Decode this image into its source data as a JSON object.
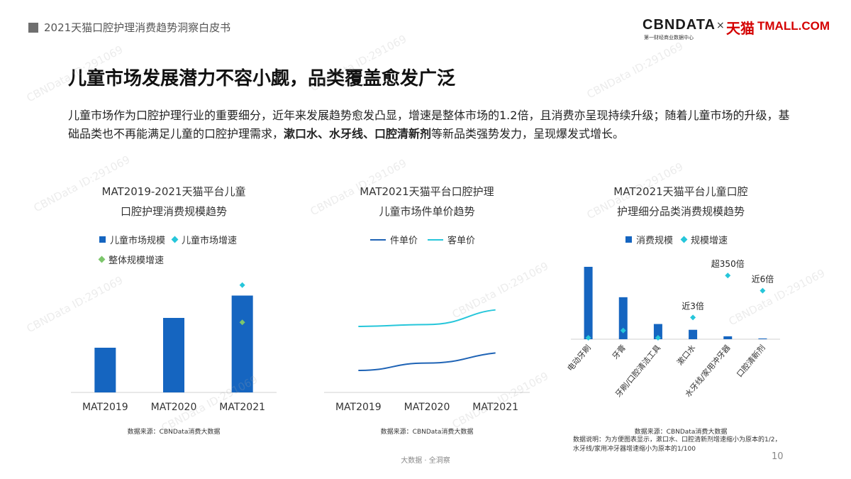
{
  "header": {
    "title": "2021天猫口腔护理消费趋势洞察白皮书"
  },
  "logo": {
    "cbn": "CBNDATA",
    "cbn_sub": "第一财经商业数据中心",
    "x": "×",
    "tmall_cn": "天猫",
    "tmall_en": "TMALL.COM"
  },
  "page_title": "儿童市场发展潜力不容小觑，品类覆盖愈发广泛",
  "intro": {
    "part1": "儿童市场作为口腔护理行业的重要细分，近年来发展趋势愈发凸显，增速是整体市场的1.2倍，且消费亦呈现持续升级；随着儿童市场的升级，基础品类也不再能满足儿童的口腔护理需求，",
    "bold": "漱口水、水牙线、口腔清新剂",
    "part2": "等新品类强势发力，呈现爆发式增长。"
  },
  "chart1": {
    "title_line1": "MAT2019-2021天猫平台儿童",
    "title_line2": "口腔护理消费规模趋势",
    "legend": [
      "儿童市场规模",
      "儿童市场增速",
      "整体规模增速"
    ],
    "source": "数据来源：CBNData消费大数据"
  },
  "chart2": {
    "title_line1": "MAT2021天猫平台口腔护理",
    "title_line2": "儿童市场件单价趋势",
    "legend": [
      "件单价",
      "客单价"
    ],
    "source": "数据来源：CBNData消费大数据"
  },
  "chart3": {
    "title_line1": "MAT2021天猫平台儿童口腔",
    "title_line2": "护理细分品类消费规模趋势",
    "legend": [
      "消费规模",
      "规模增速"
    ],
    "source": "数据来源：CBNData消费大数据",
    "note": "数据说明：为方便图表显示，漱口水、口腔清新剂增速缩小为原本的1/2，水牙线/家用冲牙器增速缩小为原本的1/100"
  },
  "chart_data": [
    {
      "type": "bar",
      "categories": [
        "MAT2019",
        "MAT2020",
        "MAT2021"
      ],
      "series": [
        {
          "name": "儿童市场规模",
          "kind": "bar",
          "color": "#1565c0",
          "values": [
            30,
            50,
            65
          ]
        },
        {
          "name": "儿童市场增速",
          "kind": "marker",
          "color": "#26c6da",
          "values": [
            null,
            null,
            72
          ]
        },
        {
          "name": "整体规模增速",
          "kind": "marker",
          "color": "#7cc66b",
          "values": [
            null,
            null,
            47
          ]
        }
      ],
      "ylim": [
        0,
        80
      ]
    },
    {
      "type": "line",
      "categories": [
        "MAT2019",
        "MAT2020",
        "MAT2021"
      ],
      "series": [
        {
          "name": "件单价",
          "color": "#1e63b5",
          "values": [
            24,
            32,
            43
          ]
        },
        {
          "name": "客单价",
          "color": "#26c6da",
          "values": [
            72,
            74,
            90
          ]
        }
      ],
      "ylim": [
        0,
        130
      ]
    },
    {
      "type": "bar",
      "categories": [
        "电动牙刷",
        "牙膏",
        "牙刷/口腔清洁工具",
        "漱口水",
        "水牙线/家用冲牙器",
        "口腔清新剂"
      ],
      "series": [
        {
          "name": "消费规模",
          "kind": "bar",
          "color": "#1565c0",
          "values": [
            100,
            58,
            21,
            13,
            4,
            1
          ]
        },
        {
          "name": "规模增速",
          "kind": "marker",
          "color": "#26c6da",
          "values": [
            0,
            12,
            0,
            30,
            88,
            67
          ]
        }
      ],
      "annotations": [
        {
          "category": "漱口水",
          "text": "近3倍"
        },
        {
          "category": "水牙线/家用冲牙器",
          "text": "超350倍"
        },
        {
          "category": "口腔清新剂",
          "text": "近6倍"
        }
      ],
      "ylim": [
        0,
        100
      ]
    }
  ],
  "footer": {
    "text": "大数据 · 全洞察",
    "page": "10"
  },
  "watermark": "CBNData ID:291069",
  "colors": {
    "bar": "#1565c0",
    "cyan": "#26c6da",
    "green": "#7cc66b",
    "line_dark": "#1e63b5"
  }
}
